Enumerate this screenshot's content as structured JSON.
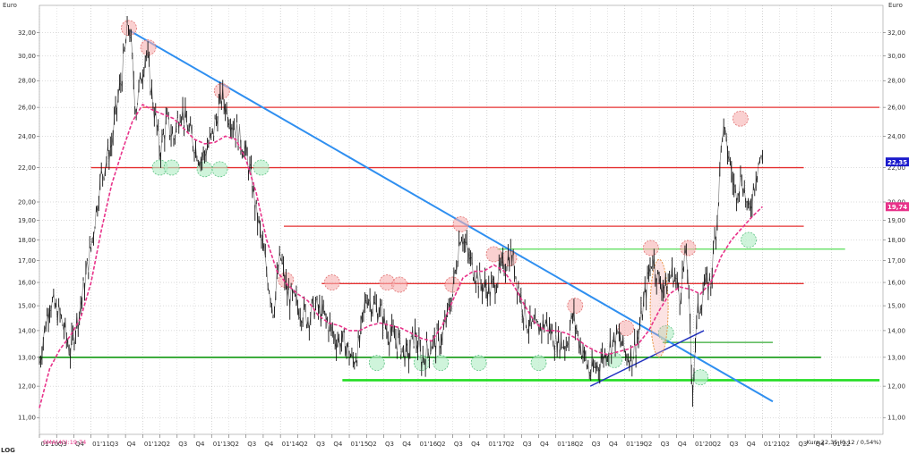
{
  "chart_data": {
    "type": "line",
    "currency_label": "Euro",
    "scale": "log",
    "scale_label": "LOG",
    "ylim": [
      10.5,
      34.5
    ],
    "y_ticks": [
      "32,00",
      "30,00",
      "28,00",
      "26,00",
      "24,00",
      "22,00",
      "20,00",
      "19,00",
      "18,00",
      "17,00",
      "16,00",
      "15,00",
      "14,00",
      "13,00",
      "12,00",
      "11,00"
    ],
    "x_ticks": [
      "01'10",
      "Q3",
      "Q4",
      "01'11",
      "Q3",
      "Q4",
      "01'12",
      "Q2",
      "Q3",
      "Q4",
      "01'13",
      "Q2",
      "Q3",
      "Q4",
      "01'14",
      "Q2",
      "Q3",
      "Q4",
      "01'15",
      "Q2",
      "Q3",
      "Q4",
      "01'16",
      "Q2",
      "Q3",
      "Q4",
      "01'17",
      "Q2",
      "Q3",
      "Q4",
      "01'18",
      "Q2",
      "Q3",
      "Q4",
      "01'19",
      "Q2",
      "Q3",
      "Q4",
      "01'20",
      "Q2",
      "Q3",
      "Q4",
      "01'21",
      "Q2",
      "Q3",
      "Q4",
      "01'22"
    ],
    "x_range": [
      2010.0,
      2022.25
    ],
    "price_series": {
      "points": [
        [
          2010.0,
          12.8
        ],
        [
          2010.15,
          15.2
        ],
        [
          2010.3,
          14.6
        ],
        [
          2010.45,
          13.2
        ],
        [
          2010.6,
          15.0
        ],
        [
          2010.75,
          17.6
        ],
        [
          2010.9,
          21.5
        ],
        [
          2011.05,
          23.5
        ],
        [
          2011.2,
          28.5
        ],
        [
          2011.3,
          33.0
        ],
        [
          2011.4,
          25.8
        ],
        [
          2011.55,
          30.5
        ],
        [
          2011.62,
          27.5
        ],
        [
          2011.75,
          23.0
        ],
        [
          2011.85,
          25.0
        ],
        [
          2011.95,
          23.8
        ],
        [
          2012.05,
          26.0
        ],
        [
          2012.2,
          24.0
        ],
        [
          2012.35,
          22.5
        ],
        [
          2012.5,
          23.8
        ],
        [
          2012.65,
          26.8
        ],
        [
          2012.75,
          25.5
        ],
        [
          2012.85,
          24.5
        ],
        [
          2012.95,
          23.5
        ],
        [
          2013.05,
          22.0
        ],
        [
          2013.15,
          19.5
        ],
        [
          2013.3,
          16.5
        ],
        [
          2013.4,
          14.8
        ],
        [
          2013.5,
          17.2
        ],
        [
          2013.6,
          15.5
        ],
        [
          2013.75,
          15.0
        ],
        [
          2013.9,
          14.5
        ],
        [
          2014.0,
          15.0
        ],
        [
          2014.15,
          14.5
        ],
        [
          2014.3,
          13.7
        ],
        [
          2014.45,
          13.5
        ],
        [
          2014.55,
          12.8
        ],
        [
          2014.65,
          13.5
        ],
        [
          2014.75,
          15.5
        ],
        [
          2014.85,
          15.0
        ],
        [
          2014.95,
          14.8
        ],
        [
          2015.05,
          14.0
        ],
        [
          2015.2,
          13.6
        ],
        [
          2015.35,
          13.0
        ],
        [
          2015.45,
          13.9
        ],
        [
          2015.55,
          12.9
        ],
        [
          2015.7,
          13.5
        ],
        [
          2015.85,
          13.7
        ],
        [
          2016.0,
          15.5
        ],
        [
          2016.12,
          18.5
        ],
        [
          2016.25,
          17.0
        ],
        [
          2016.4,
          16.0
        ],
        [
          2016.55,
          15.6
        ],
        [
          2016.7,
          16.5
        ],
        [
          2016.85,
          17.4
        ],
        [
          2017.0,
          15.2
        ],
        [
          2017.1,
          14.2
        ],
        [
          2017.2,
          14.0
        ],
        [
          2017.35,
          14.3
        ],
        [
          2017.5,
          13.6
        ],
        [
          2017.65,
          13.5
        ],
        [
          2017.75,
          14.6
        ],
        [
          2017.85,
          13.5
        ],
        [
          2018.0,
          12.4
        ],
        [
          2018.1,
          12.7
        ],
        [
          2018.25,
          13.3
        ],
        [
          2018.4,
          13.8
        ],
        [
          2018.5,
          13.2
        ],
        [
          2018.6,
          13.0
        ],
        [
          2018.7,
          13.8
        ],
        [
          2018.8,
          15.5
        ],
        [
          2018.9,
          17.2
        ],
        [
          2019.0,
          16.0
        ],
        [
          2019.1,
          15.8
        ],
        [
          2019.2,
          16.5
        ],
        [
          2019.3,
          15.5
        ],
        [
          2019.4,
          17.5
        ],
        [
          2019.48,
          11.7
        ],
        [
          2019.55,
          14.5
        ],
        [
          2019.65,
          15.8
        ],
        [
          2019.75,
          16.0
        ],
        [
          2019.85,
          19.5
        ],
        [
          2019.92,
          24.5
        ],
        [
          2020.0,
          23.0
        ],
        [
          2020.1,
          20.5
        ],
        [
          2020.2,
          21.5
        ],
        [
          2020.3,
          19.2
        ],
        [
          2020.4,
          21.5
        ],
        [
          2020.45,
          22.5
        ],
        [
          2020.5,
          22.35
        ]
      ]
    },
    "sma_series": {
      "name": "SMA(40)",
      "points": [
        [
          2010.0,
          11.3
        ],
        [
          2010.15,
          12.6
        ],
        [
          2010.3,
          13.3
        ],
        [
          2010.45,
          13.8
        ],
        [
          2010.6,
          14.5
        ],
        [
          2010.75,
          16.0
        ],
        [
          2010.9,
          18.5
        ],
        [
          2011.05,
          21.0
        ],
        [
          2011.2,
          23.0
        ],
        [
          2011.35,
          25.0
        ],
        [
          2011.5,
          26.2
        ],
        [
          2011.65,
          25.8
        ],
        [
          2011.8,
          25.5
        ],
        [
          2011.95,
          25.2
        ],
        [
          2012.1,
          24.5
        ],
        [
          2012.25,
          23.8
        ],
        [
          2012.4,
          23.5
        ],
        [
          2012.55,
          23.6
        ],
        [
          2012.7,
          24.0
        ],
        [
          2012.85,
          23.8
        ],
        [
          2013.0,
          22.5
        ],
        [
          2013.15,
          20.5
        ],
        [
          2013.3,
          18.0
        ],
        [
          2013.45,
          16.5
        ],
        [
          2013.6,
          15.9
        ],
        [
          2013.75,
          15.5
        ],
        [
          2013.9,
          15.2
        ],
        [
          2014.05,
          14.6
        ],
        [
          2014.2,
          14.3
        ],
        [
          2014.35,
          14.2
        ],
        [
          2014.5,
          14.0
        ],
        [
          2014.65,
          14.0
        ],
        [
          2014.8,
          14.2
        ],
        [
          2014.95,
          14.3
        ],
        [
          2015.1,
          14.2
        ],
        [
          2015.25,
          14.1
        ],
        [
          2015.4,
          13.9
        ],
        [
          2015.55,
          13.7
        ],
        [
          2015.7,
          13.6
        ],
        [
          2015.85,
          14.2
        ],
        [
          2016.0,
          15.2
        ],
        [
          2016.15,
          16.2
        ],
        [
          2016.3,
          16.5
        ],
        [
          2016.45,
          16.5
        ],
        [
          2016.6,
          16.8
        ],
        [
          2016.75,
          16.5
        ],
        [
          2016.9,
          15.8
        ],
        [
          2017.05,
          15.0
        ],
        [
          2017.2,
          14.3
        ],
        [
          2017.35,
          14.0
        ],
        [
          2017.5,
          14.0
        ],
        [
          2017.65,
          13.9
        ],
        [
          2017.8,
          13.7
        ],
        [
          2017.95,
          13.4
        ],
        [
          2018.1,
          13.2
        ],
        [
          2018.25,
          13.1
        ],
        [
          2018.4,
          13.2
        ],
        [
          2018.55,
          13.3
        ],
        [
          2018.7,
          13.5
        ],
        [
          2018.85,
          14.0
        ],
        [
          2019.0,
          14.8
        ],
        [
          2019.15,
          15.5
        ],
        [
          2019.3,
          15.8
        ],
        [
          2019.45,
          15.7
        ],
        [
          2019.6,
          15.5
        ],
        [
          2019.75,
          16.0
        ],
        [
          2019.9,
          17.2
        ],
        [
          2020.05,
          18.0
        ],
        [
          2020.2,
          18.6
        ],
        [
          2020.35,
          19.2
        ],
        [
          2020.5,
          19.74
        ]
      ]
    },
    "resistance_lines": [
      {
        "y": 26.0,
        "x0": 2011.5,
        "x1": 2022.2,
        "color": "#e53030"
      },
      {
        "y": 22.0,
        "x0": 2010.75,
        "x1": 2021.1,
        "color": "#e53030"
      },
      {
        "y": 18.7,
        "x0": 2013.55,
        "x1": 2021.1,
        "color": "#e53030"
      },
      {
        "y": 15.95,
        "x0": 2014.1,
        "x1": 2021.1,
        "color": "#e53030"
      }
    ],
    "support_lines": [
      {
        "y": 17.55,
        "x0": 2016.65,
        "x1": 2021.7,
        "color": "#55dd55",
        "width": 1.2
      },
      {
        "y": 13.55,
        "x0": 2019.05,
        "x1": 2020.65,
        "color": "#33aa33",
        "width": 1.2
      },
      {
        "y": 13.0,
        "x0": 2010.0,
        "x1": 2021.35,
        "color": "#119911",
        "width": 1.6
      },
      {
        "y": 12.2,
        "x0": 2014.4,
        "x1": 2022.2,
        "color": "#22dd22",
        "width": 2.6
      }
    ],
    "trend_lines": [
      {
        "from": [
          2011.3,
          32.2
        ],
        "to": [
          2020.65,
          11.5
        ],
        "color": "#2f8ff0",
        "width": 2
      },
      {
        "from": [
          2018.0,
          12.0
        ],
        "to": [
          2019.65,
          14.0
        ],
        "color": "#2030c0",
        "width": 1.5
      }
    ],
    "annotations": {
      "peaks": [
        [
          2011.3,
          32.4
        ],
        [
          2011.58,
          30.7
        ],
        [
          2012.65,
          27.2
        ],
        [
          2013.58,
          16.1
        ],
        [
          2014.25,
          16.0
        ],
        [
          2015.05,
          16.0
        ],
        [
          2015.23,
          15.9
        ],
        [
          2016.0,
          15.9
        ],
        [
          2016.12,
          18.8
        ],
        [
          2016.6,
          17.3
        ],
        [
          2016.82,
          17.1
        ],
        [
          2017.78,
          15.0
        ],
        [
          2018.52,
          14.1
        ],
        [
          2018.88,
          17.6
        ],
        [
          2019.42,
          17.6
        ],
        [
          2020.18,
          25.2
        ]
      ],
      "troughs": [
        [
          2011.75,
          22.0
        ],
        [
          2011.92,
          22.0
        ],
        [
          2012.4,
          21.9
        ],
        [
          2012.62,
          21.9
        ],
        [
          2013.22,
          22.0
        ],
        [
          2014.9,
          12.8
        ],
        [
          2015.55,
          12.8
        ],
        [
          2015.83,
          12.8
        ],
        [
          2016.38,
          12.8
        ],
        [
          2017.25,
          12.8
        ],
        [
          2018.35,
          12.9
        ],
        [
          2019.1,
          13.9
        ],
        [
          2019.6,
          12.3
        ],
        [
          2020.3,
          18.0
        ]
      ],
      "highlight_oval": {
        "center": [
          2019.0,
          14.9
        ],
        "rx_years": 0.13,
        "ry_value": 2.0
      }
    },
    "last_price_label": "22,35",
    "sma_label": "19,74",
    "sma_legend": "SMA(40):19,74",
    "quote_info": "Kurs:22,35 (0,12 / 0,54%)",
    "colors": {
      "price": "#111111",
      "sma": "#e8338a",
      "last_price_badge": "#1a1acc",
      "sma_badge": "#e8338a",
      "peak_fill": "#f6b0b0",
      "peak_stroke": "#e07070",
      "trough_fill": "#b6eec8",
      "trough_stroke": "#5ac080"
    }
  }
}
